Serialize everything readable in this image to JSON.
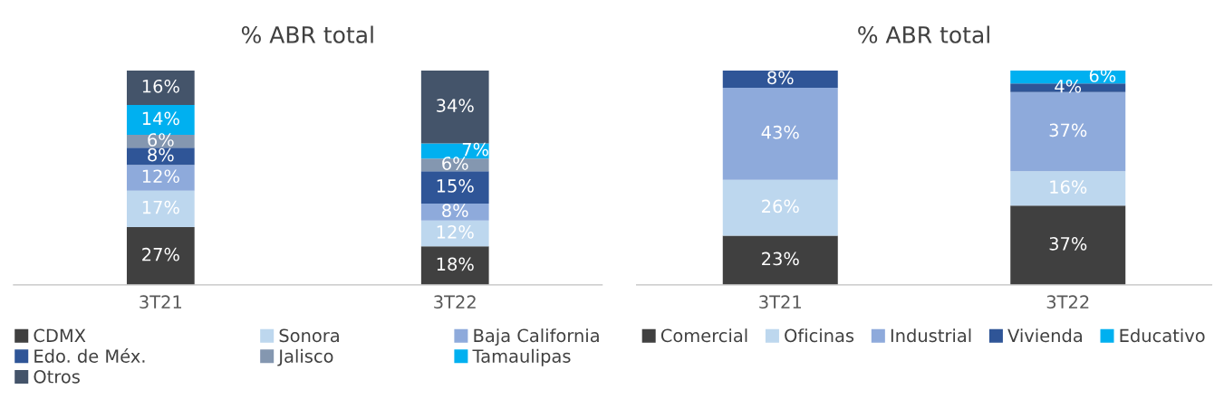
{
  "chart_data": [
    {
      "type": "bar",
      "title": "% ABR total",
      "categories": [
        "3T21",
        "3T22"
      ],
      "stacked": true,
      "legend": "bottom",
      "grid": false,
      "series": [
        {
          "name": "CDMX",
          "color": "#404040",
          "values": [
            27,
            18
          ],
          "value_labels": [
            "27%",
            "18%"
          ]
        },
        {
          "name": "Sonora",
          "color": "#bdd7ee",
          "values": [
            17,
            12
          ],
          "value_labels": [
            "17%",
            "12%"
          ]
        },
        {
          "name": "Baja California",
          "color": "#8eaadb",
          "values": [
            12,
            8
          ],
          "value_labels": [
            "12%",
            "8%"
          ]
        },
        {
          "name": "Edo. de Méx.",
          "color": "#2f5597",
          "values": [
            8,
            15
          ],
          "value_labels": [
            "8%",
            "15%"
          ]
        },
        {
          "name": "Jalisco",
          "color": "#8497b0",
          "values": [
            6,
            6
          ],
          "value_labels": [
            "6%",
            "6%"
          ]
        },
        {
          "name": "Tamaulipas",
          "color": "#00b0f0",
          "values": [
            14,
            7
          ],
          "value_labels": [
            "14%",
            "7%"
          ]
        },
        {
          "name": "Otros",
          "color": "#44546a",
          "values": [
            16,
            34
          ],
          "value_labels": [
            "16%",
            "34%"
          ]
        }
      ]
    },
    {
      "type": "bar",
      "title": "% ABR total",
      "categories": [
        "3T21",
        "3T22"
      ],
      "stacked": true,
      "legend": "bottom",
      "grid": false,
      "series": [
        {
          "name": "Comercial",
          "color": "#404040",
          "values": [
            23,
            37
          ],
          "value_labels": [
            "23%",
            "37%"
          ]
        },
        {
          "name": "Oficinas",
          "color": "#bdd7ee",
          "values": [
            26,
            16
          ],
          "value_labels": [
            "26%",
            "16%"
          ]
        },
        {
          "name": "Industrial",
          "color": "#8eaadb",
          "values": [
            43,
            37
          ],
          "value_labels": [
            "43%",
            "37%"
          ]
        },
        {
          "name": "Vivienda",
          "color": "#2f5597",
          "values": [
            8,
            4
          ],
          "value_labels": [
            "8%",
            "4%"
          ]
        },
        {
          "name": "Educativo",
          "color": "#00b0f0",
          "values": [
            null,
            6
          ],
          "value_labels": [
            null,
            "6%"
          ]
        }
      ]
    }
  ]
}
